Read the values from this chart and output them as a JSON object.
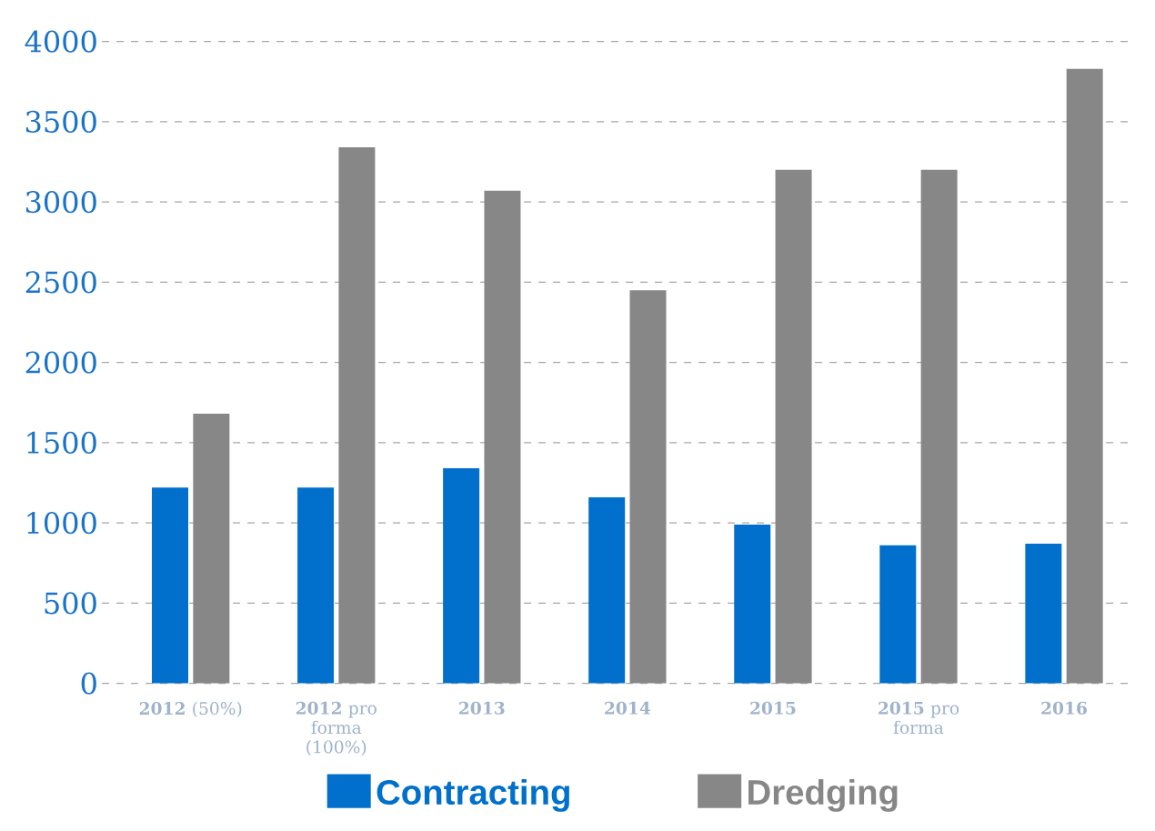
{
  "chart_data": {
    "type": "bar",
    "categories": [
      "**2012** (50%)",
      "**2012** pro forma (100%)",
      "**2013**",
      "**2014**",
      "**2015**",
      "**2015** pro forma",
      "**2016**"
    ],
    "series": [
      {
        "name": "Contracting",
        "color": "#0070cc",
        "values": [
          1220,
          1220,
          1340,
          1160,
          990,
          860,
          870
        ]
      },
      {
        "name": "Dredging",
        "color": "#878787",
        "values": [
          1680,
          3340,
          3070,
          2450,
          3200,
          3200,
          3830
        ]
      }
    ],
    "ylim": [
      0,
      4000
    ],
    "yticks": [
      0,
      500,
      1000,
      1500,
      2000,
      2500,
      3000,
      3500,
      4000
    ],
    "grid": "y",
    "legend": "bottom"
  }
}
